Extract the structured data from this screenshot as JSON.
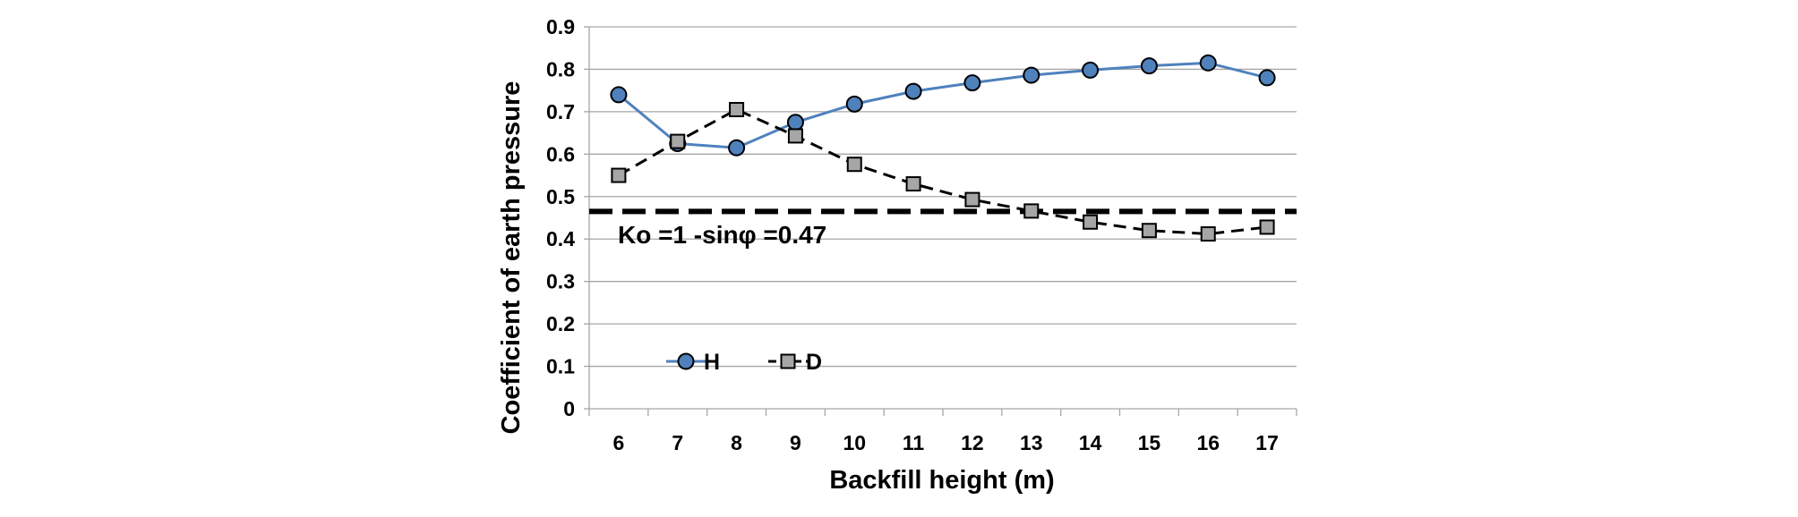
{
  "chart_data": {
    "type": "line",
    "xlabel": "Backfill height (m)",
    "ylabel": "Coefficient of earth pressure",
    "categories": [
      "6",
      "7",
      "8",
      "9",
      "10",
      "11",
      "12",
      "13",
      "14",
      "15",
      "16",
      "17"
    ],
    "ylim": [
      0,
      0.9
    ],
    "yticks": [
      "0",
      "0.1",
      "0.2",
      "0.3",
      "0.4",
      "0.5",
      "0.6",
      "0.7",
      "0.8",
      "0.9"
    ],
    "grid": "horizontal",
    "legend_placement": "bottom-left",
    "series": [
      {
        "name": "H",
        "marker": "circle",
        "line": "solid",
        "color": "#4f81bd",
        "values": [
          0.74,
          0.625,
          0.615,
          0.675,
          0.718,
          0.748,
          0.768,
          0.786,
          0.798,
          0.808,
          0.815,
          0.78
        ]
      },
      {
        "name": "D",
        "marker": "square",
        "line": "dashed",
        "color": "#a6a6a6",
        "values": [
          0.55,
          0.63,
          0.705,
          0.643,
          0.576,
          0.53,
          0.493,
          0.466,
          0.44,
          0.42,
          0.412,
          0.428
        ]
      }
    ],
    "reference_line": {
      "label": "Ko =1 -sinφ =0.47",
      "value": 0.465,
      "style": "dashed",
      "color": "#000000"
    }
  }
}
